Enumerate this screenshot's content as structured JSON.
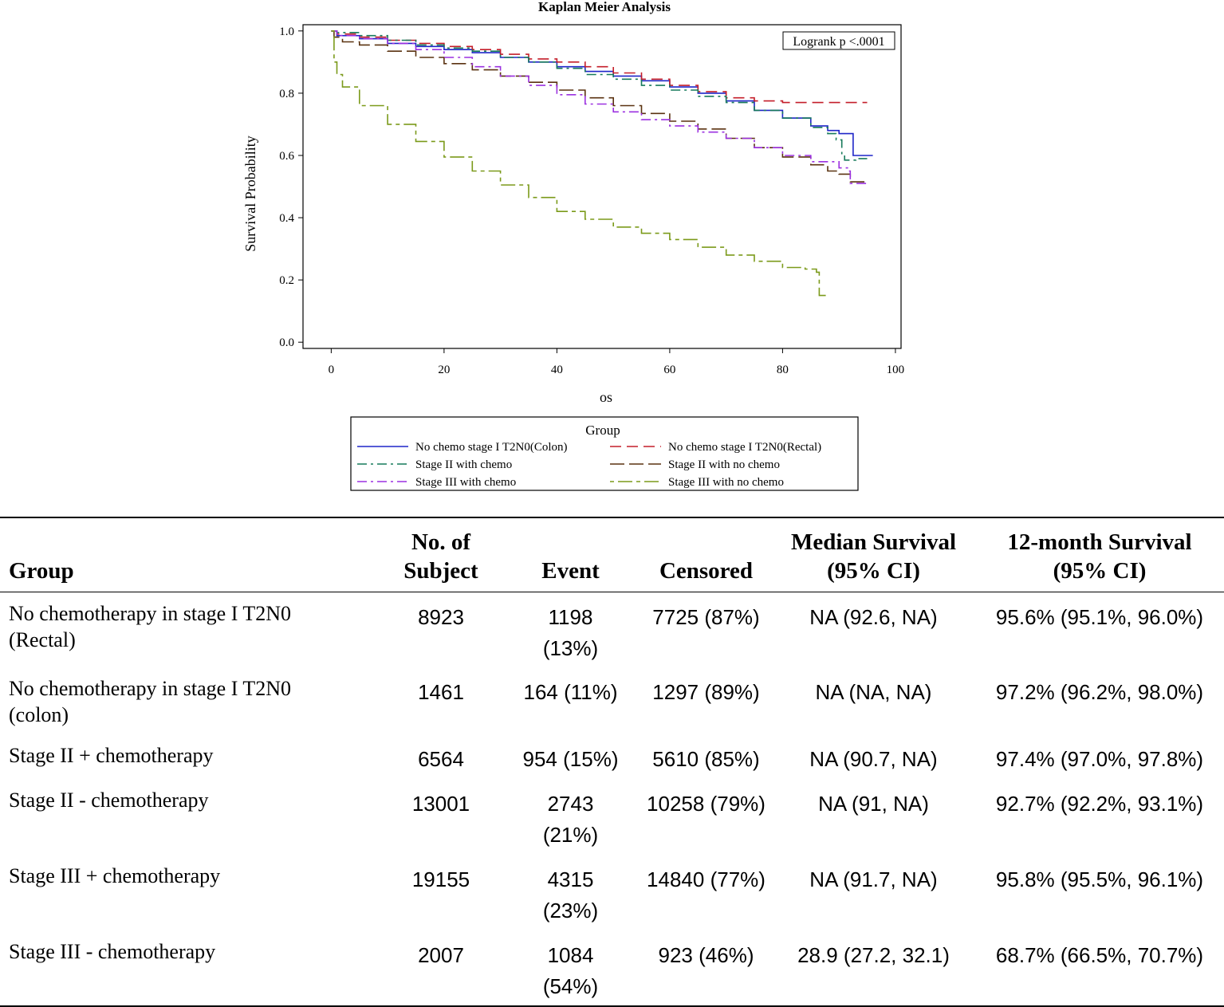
{
  "chart_data": {
    "type": "line",
    "title": "Kaplan Meier Analysis",
    "xlabel": "os",
    "ylabel": "Survival Probability",
    "xlim": [
      -5,
      101
    ],
    "ylim": [
      -0.02,
      1.02
    ],
    "xticks": [
      0,
      20,
      40,
      60,
      80,
      100
    ],
    "yticks": [
      "0.0",
      "0.2",
      "0.4",
      "0.6",
      "0.8",
      "1.0"
    ],
    "annotation": "Logrank p <.0001",
    "legend_title": "Group",
    "legend_position": "bottom",
    "series": [
      {
        "name": "No chemo stage I T2N0(Colon)",
        "color": "#1f25c8",
        "dash": "solid",
        "points": [
          [
            0,
            1.0
          ],
          [
            1,
            0.985
          ],
          [
            5,
            0.975
          ],
          [
            10,
            0.96
          ],
          [
            15,
            0.95
          ],
          [
            20,
            0.94
          ],
          [
            25,
            0.93
          ],
          [
            30,
            0.915
          ],
          [
            35,
            0.9
          ],
          [
            40,
            0.885
          ],
          [
            45,
            0.87
          ],
          [
            50,
            0.855
          ],
          [
            55,
            0.84
          ],
          [
            60,
            0.82
          ],
          [
            65,
            0.8
          ],
          [
            70,
            0.775
          ],
          [
            75,
            0.745
          ],
          [
            80,
            0.72
          ],
          [
            85,
            0.695
          ],
          [
            88,
            0.68
          ],
          [
            90,
            0.67
          ],
          [
            92.5,
            0.66
          ],
          [
            92.5,
            0.6
          ],
          [
            96,
            0.6
          ]
        ]
      },
      {
        "name": "No chemo stage I T2N0(Rectal)",
        "color": "#c41e2a",
        "dash": "long",
        "points": [
          [
            0,
            1.0
          ],
          [
            1,
            0.99
          ],
          [
            5,
            0.98
          ],
          [
            10,
            0.97
          ],
          [
            15,
            0.96
          ],
          [
            20,
            0.95
          ],
          [
            25,
            0.94
          ],
          [
            30,
            0.925
          ],
          [
            35,
            0.91
          ],
          [
            40,
            0.9
          ],
          [
            45,
            0.885
          ],
          [
            50,
            0.865
          ],
          [
            55,
            0.845
          ],
          [
            60,
            0.825
          ],
          [
            65,
            0.805
          ],
          [
            70,
            0.785
          ],
          [
            75,
            0.775
          ],
          [
            80,
            0.77
          ],
          [
            85,
            0.77
          ],
          [
            90,
            0.77
          ],
          [
            95,
            0.77
          ]
        ]
      },
      {
        "name": "Stage II with chemo",
        "color": "#177a5b",
        "dash": "dashdot",
        "points": [
          [
            0,
            1.0
          ],
          [
            1,
            0.995
          ],
          [
            5,
            0.985
          ],
          [
            10,
            0.97
          ],
          [
            15,
            0.955
          ],
          [
            20,
            0.945
          ],
          [
            25,
            0.935
          ],
          [
            30,
            0.915
          ],
          [
            35,
            0.9
          ],
          [
            40,
            0.88
          ],
          [
            45,
            0.86
          ],
          [
            50,
            0.845
          ],
          [
            55,
            0.825
          ],
          [
            60,
            0.81
          ],
          [
            65,
            0.79
          ],
          [
            70,
            0.77
          ],
          [
            75,
            0.745
          ],
          [
            80,
            0.72
          ],
          [
            85,
            0.69
          ],
          [
            88,
            0.67
          ],
          [
            89.5,
            0.65
          ],
          [
            90.5,
            0.6
          ],
          [
            91,
            0.585
          ],
          [
            92,
            0.585
          ],
          [
            93,
            0.59
          ],
          [
            95,
            0.59
          ]
        ]
      },
      {
        "name": "Stage II with no chemo",
        "color": "#5a3210",
        "dash": "longdash",
        "points": [
          [
            0,
            1.0
          ],
          [
            0.5,
            0.98
          ],
          [
            2,
            0.965
          ],
          [
            5,
            0.955
          ],
          [
            10,
            0.935
          ],
          [
            15,
            0.915
          ],
          [
            20,
            0.895
          ],
          [
            25,
            0.875
          ],
          [
            30,
            0.855
          ],
          [
            35,
            0.835
          ],
          [
            40,
            0.81
          ],
          [
            45,
            0.785
          ],
          [
            50,
            0.76
          ],
          [
            55,
            0.735
          ],
          [
            60,
            0.71
          ],
          [
            65,
            0.685
          ],
          [
            70,
            0.655
          ],
          [
            75,
            0.625
          ],
          [
            80,
            0.595
          ],
          [
            85,
            0.57
          ],
          [
            88,
            0.55
          ],
          [
            90,
            0.54
          ],
          [
            92,
            0.515
          ],
          [
            95,
            0.51
          ]
        ]
      },
      {
        "name": "Stage III with chemo",
        "color": "#9b30e0",
        "dash": "dashdot",
        "points": [
          [
            0,
            1.0
          ],
          [
            1,
            0.985
          ],
          [
            5,
            0.975
          ],
          [
            10,
            0.96
          ],
          [
            15,
            0.94
          ],
          [
            20,
            0.915
          ],
          [
            25,
            0.885
          ],
          [
            30,
            0.855
          ],
          [
            35,
            0.825
          ],
          [
            40,
            0.795
          ],
          [
            45,
            0.765
          ],
          [
            50,
            0.74
          ],
          [
            55,
            0.715
          ],
          [
            60,
            0.695
          ],
          [
            65,
            0.675
          ],
          [
            70,
            0.655
          ],
          [
            75,
            0.625
          ],
          [
            80,
            0.6
          ],
          [
            85,
            0.58
          ],
          [
            90,
            0.56
          ],
          [
            91.5,
            0.55
          ],
          [
            92,
            0.51
          ],
          [
            95,
            0.51
          ]
        ]
      },
      {
        "name": "Stage III with no chemo",
        "color": "#7b9a1a",
        "dash": "dashlong",
        "points": [
          [
            0,
            1.0
          ],
          [
            0.5,
            0.9
          ],
          [
            1,
            0.86
          ],
          [
            2,
            0.82
          ],
          [
            5,
            0.76
          ],
          [
            10,
            0.7
          ],
          [
            15,
            0.645
          ],
          [
            20,
            0.595
          ],
          [
            25,
            0.55
          ],
          [
            30,
            0.505
          ],
          [
            35,
            0.465
          ],
          [
            40,
            0.42
          ],
          [
            45,
            0.395
          ],
          [
            50,
            0.37
          ],
          [
            55,
            0.35
          ],
          [
            60,
            0.33
          ],
          [
            65,
            0.305
          ],
          [
            70,
            0.28
          ],
          [
            75,
            0.26
          ],
          [
            80,
            0.24
          ],
          [
            84,
            0.235
          ],
          [
            86,
            0.225
          ],
          [
            86.5,
            0.22
          ],
          [
            86.5,
            0.15
          ],
          [
            88,
            0.15
          ]
        ]
      }
    ]
  },
  "table": {
    "headers": {
      "group": "Group",
      "subjects_line1": "No. of",
      "subjects_line2": "Subject",
      "event": "Event",
      "censored": "Censored",
      "median_line1": "Median Survival",
      "median_line2": "(95% CI)",
      "twelve_line1": "12-month Survival",
      "twelve_line2": "(95% CI)"
    },
    "rows": [
      {
        "group_line1": "No chemotherapy in stage I T2N0",
        "group_line2": "(Rectal)",
        "subjects": "8923",
        "event_line1": "1198",
        "event_line2": "(13%)",
        "censored": "7725 (87%)",
        "median": "NA (92.6, NA)",
        "twelve": "95.6% (95.1%, 96.0%)"
      },
      {
        "group_line1": "No chemotherapy in stage I T2N0",
        "group_line2": "(colon)",
        "subjects": "1461",
        "event_line1": "164 (11%)",
        "event_line2": "",
        "censored": "1297 (89%)",
        "median": "NA (NA, NA)",
        "twelve": "97.2% (96.2%, 98.0%)"
      },
      {
        "group_line1": "Stage II + chemotherapy",
        "group_line2": "",
        "subjects": "6564",
        "event_line1": "954 (15%)",
        "event_line2": "",
        "censored": "5610 (85%)",
        "median": "NA (90.7, NA)",
        "twelve": "97.4% (97.0%, 97.8%)"
      },
      {
        "group_line1": "Stage II - chemotherapy",
        "group_line2": "",
        "subjects": "13001",
        "event_line1": "2743",
        "event_line2": "(21%)",
        "censored": "10258 (79%)",
        "median": "NA (91, NA)",
        "twelve": "92.7% (92.2%, 93.1%)"
      },
      {
        "group_line1": "Stage III + chemotherapy",
        "group_line2": "",
        "subjects": "19155",
        "event_line1": "4315",
        "event_line2": "(23%)",
        "censored": "14840 (77%)",
        "median": "NA (91.7, NA)",
        "twelve": "95.8% (95.5%, 96.1%)"
      },
      {
        "group_line1": "Stage III - chemotherapy",
        "group_line2": "",
        "subjects": "2007",
        "event_line1": "1084",
        "event_line2": "(54%)",
        "censored": "923 (46%)",
        "median": "28.9 (27.2, 32.1)",
        "twelve": "68.7% (66.5%, 70.7%)"
      }
    ]
  }
}
